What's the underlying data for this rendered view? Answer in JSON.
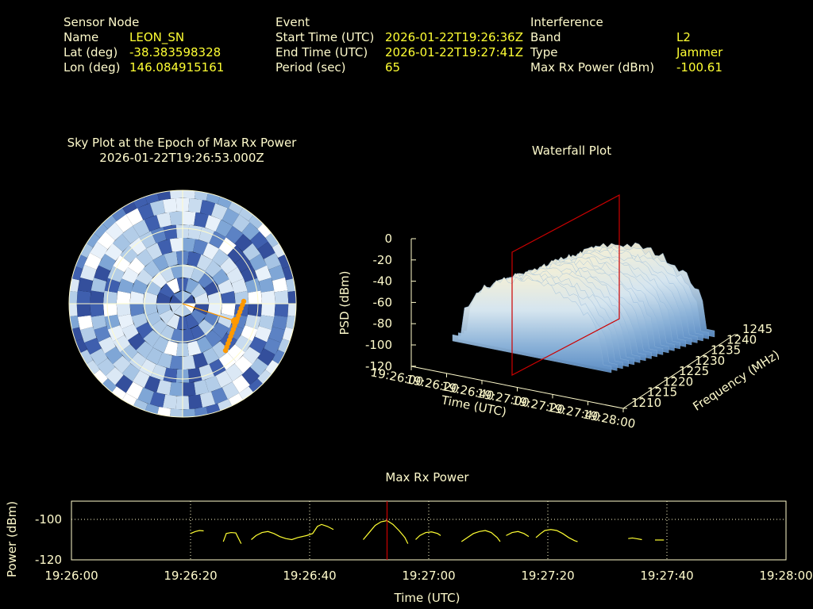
{
  "header": {
    "sensor": {
      "heading": "Sensor Node",
      "rows": [
        {
          "label": "Name",
          "value": "LEON_SN"
        },
        {
          "label": "Lat (deg)",
          "value": "-38.383598328"
        },
        {
          "label": "Lon (deg)",
          "value": "146.084915161"
        }
      ]
    },
    "event": {
      "heading": "Event",
      "rows": [
        {
          "label": "Start Time (UTC)",
          "value": "2026-01-22T19:26:36Z"
        },
        {
          "label": "End Time (UTC)",
          "value": "2026-01-22T19:27:41Z"
        },
        {
          "label": "Period (sec)",
          "value": "65"
        }
      ]
    },
    "interference": {
      "heading": "Interference",
      "rows": [
        {
          "label": "Band",
          "value": "L2"
        },
        {
          "label": "Type",
          "value": "Jammer"
        },
        {
          "label": "Max Rx Power (dBm)",
          "value": "-100.61"
        }
      ]
    }
  },
  "sky_plot": {
    "title": "Sky Plot at the Epoch of Max Rx Power",
    "subtitle": "2026-01-22T19:26:53.000Z",
    "track_color": "#ff9900"
  },
  "waterfall": {
    "title": "Waterfall Plot",
    "z_label": "PSD (dBm)",
    "x_label": "Time (UTC)",
    "y_label": "Frequency (MHz)",
    "z_ticks": [
      "0",
      "-20",
      "-40",
      "-60",
      "-80",
      "-100",
      "-120"
    ],
    "x_ticks": [
      "19:26:00",
      "19:26:20",
      "19:26:40",
      "19:27:00",
      "19:27:20",
      "19:27:40",
      "19:28:00"
    ],
    "y_ticks": [
      "1210",
      "1215",
      "1220",
      "1225",
      "1230",
      "1235",
      "1240",
      "1245"
    ],
    "marker_color": "#cc0000"
  },
  "chart_data": [
    {
      "type": "line",
      "title": "Max Rx Power",
      "xlabel": "Time (UTC)",
      "ylabel": "Power (dBm)",
      "x_ticks": [
        "19:26:00",
        "19:26:20",
        "19:26:40",
        "19:27:00",
        "19:27:20",
        "19:27:40",
        "19:28:00"
      ],
      "y_ticks": [
        "-100",
        "-120"
      ],
      "xlim_sec": [
        0,
        120
      ],
      "ylim": [
        -120,
        -91
      ],
      "grid": true,
      "series_color": "#ffff33",
      "marker_time_sec": 53,
      "marker_color": "#cc0000",
      "segments": [
        [
          [
            20,
            -107
          ],
          [
            20.8,
            -106
          ],
          [
            21.5,
            -105.5
          ],
          [
            22.2,
            -105.7
          ]
        ],
        [
          [
            25.5,
            -111
          ],
          [
            26,
            -107
          ],
          [
            26.8,
            -106.5
          ],
          [
            27.6,
            -106.7
          ],
          [
            28.5,
            -112
          ]
        ],
        [
          [
            30.2,
            -110
          ],
          [
            31,
            -108
          ],
          [
            32,
            -106.5
          ],
          [
            33,
            -106
          ],
          [
            34,
            -107
          ],
          [
            35,
            -108.5
          ],
          [
            36,
            -109.5
          ],
          [
            37,
            -110
          ],
          [
            38,
            -109
          ],
          [
            39.5,
            -108
          ],
          [
            40.5,
            -107
          ],
          [
            41.3,
            -103.5
          ],
          [
            42,
            -102.5
          ],
          [
            43,
            -103.5
          ],
          [
            44,
            -105
          ]
        ],
        [
          [
            49,
            -110
          ],
          [
            50,
            -106.5
          ],
          [
            51,
            -103
          ],
          [
            52,
            -101.2
          ],
          [
            53,
            -100.6
          ],
          [
            54,
            -102.5
          ],
          [
            55,
            -105.5
          ],
          [
            56,
            -109
          ],
          [
            56.5,
            -112
          ]
        ],
        [
          [
            57.8,
            -110
          ],
          [
            58.5,
            -108
          ],
          [
            59.5,
            -106.5
          ],
          [
            60.5,
            -106.2
          ],
          [
            61.5,
            -107
          ],
          [
            62,
            -108
          ]
        ],
        [
          [
            65.5,
            -111
          ],
          [
            66.5,
            -109
          ],
          [
            67.5,
            -107
          ],
          [
            68.5,
            -106
          ],
          [
            69.5,
            -105.5
          ],
          [
            70.5,
            -106.5
          ],
          [
            71.5,
            -109
          ],
          [
            72,
            -111
          ]
        ],
        [
          [
            73,
            -108
          ],
          [
            74,
            -106.5
          ],
          [
            75,
            -106
          ],
          [
            76,
            -107
          ],
          [
            76.8,
            -108.5
          ]
        ],
        [
          [
            78,
            -109
          ],
          [
            78.8,
            -107
          ],
          [
            79.5,
            -105.5
          ],
          [
            80.5,
            -105
          ],
          [
            81.5,
            -105.5
          ],
          [
            82.5,
            -107
          ],
          [
            83.5,
            -109
          ],
          [
            84.5,
            -110.5
          ],
          [
            85,
            -111
          ]
        ],
        [
          [
            93.5,
            -109.5
          ],
          [
            94.2,
            -109.2
          ],
          [
            95,
            -109.6
          ],
          [
            95.8,
            -110
          ]
        ],
        [
          [
            98,
            -110.2
          ],
          [
            99.5,
            -110.2
          ]
        ]
      ]
    }
  ]
}
